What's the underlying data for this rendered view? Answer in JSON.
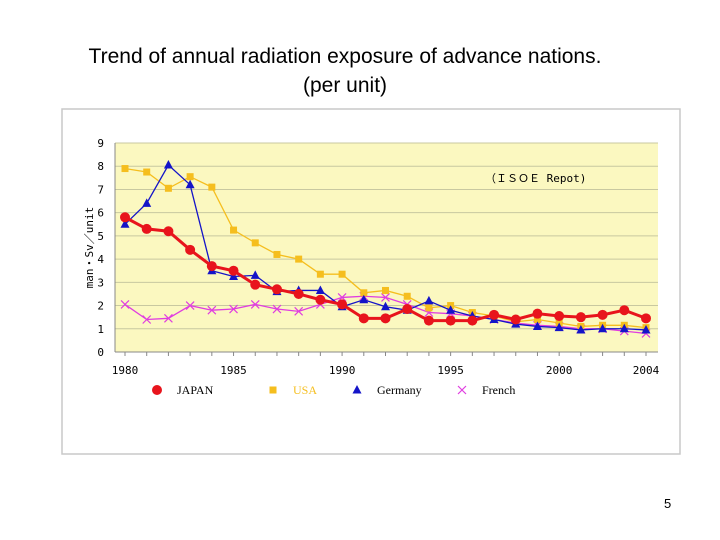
{
  "slide": {
    "title_line1": "Trend of annual radiation exposure of advance nations.",
    "title_line2": "(per unit)",
    "page_number": "5"
  },
  "chart_data": {
    "type": "line",
    "title": "",
    "annotation": "（ＩＳＯＥ Repot)",
    "xlabel": "",
    "ylabel": "man・Sv／unit",
    "x": [
      1980,
      1981,
      1982,
      1983,
      1984,
      1985,
      1986,
      1987,
      1988,
      1989,
      1990,
      1991,
      1992,
      1993,
      1994,
      1995,
      1996,
      1997,
      1998,
      1999,
      2000,
      2001,
      2002,
      2003,
      2004
    ],
    "xticks": [
      "1980",
      "1985",
      "1990",
      "1995",
      "2000",
      "2004"
    ],
    "yticks": [
      "0",
      "1",
      "2",
      "3",
      "4",
      "5",
      "6",
      "7",
      "8",
      "9"
    ],
    "xlim": [
      1980,
      2004
    ],
    "ylim": [
      0,
      9
    ],
    "grid": "horizontal",
    "plot_background": "#fbf8c0",
    "legend_position": "bottom",
    "series": [
      {
        "name": "JAPAN",
        "color": "#e8141c",
        "marker": "circle",
        "values": [
          5.8,
          5.3,
          5.2,
          4.4,
          3.7,
          3.5,
          2.9,
          2.7,
          2.5,
          2.25,
          2.05,
          1.45,
          1.45,
          1.85,
          1.35,
          1.35,
          1.35,
          1.6,
          1.4,
          1.65,
          1.55,
          1.5,
          1.6,
          1.8,
          1.45
        ]
      },
      {
        "name": "USA",
        "color": "#f5be1e",
        "marker": "square",
        "values": [
          7.9,
          7.75,
          7.05,
          7.55,
          7.1,
          5.25,
          4.7,
          4.2,
          4.0,
          3.35,
          3.35,
          2.55,
          2.65,
          2.4,
          1.9,
          2.0,
          1.7,
          1.55,
          1.3,
          1.4,
          1.25,
          1.1,
          1.15,
          1.15,
          1.05
        ]
      },
      {
        "name": "Germany",
        "color": "#1414c8",
        "marker": "triangle",
        "values": [
          5.5,
          6.4,
          8.05,
          7.2,
          3.5,
          3.25,
          3.3,
          2.6,
          2.65,
          2.65,
          1.95,
          2.25,
          1.95,
          1.8,
          2.2,
          1.8,
          1.55,
          1.4,
          1.2,
          1.1,
          1.05,
          0.95,
          1.0,
          1.0,
          0.95
        ]
      },
      {
        "name": "French",
        "color": "#e03ce0",
        "marker": "x",
        "values": [
          2.05,
          1.4,
          1.45,
          2.0,
          1.8,
          1.85,
          2.05,
          1.85,
          1.75,
          2.05,
          2.35,
          2.4,
          2.35,
          2.05,
          1.7,
          1.65,
          1.55,
          1.4,
          1.25,
          1.15,
          1.1,
          1.0,
          1.0,
          0.9,
          0.8
        ]
      }
    ]
  }
}
